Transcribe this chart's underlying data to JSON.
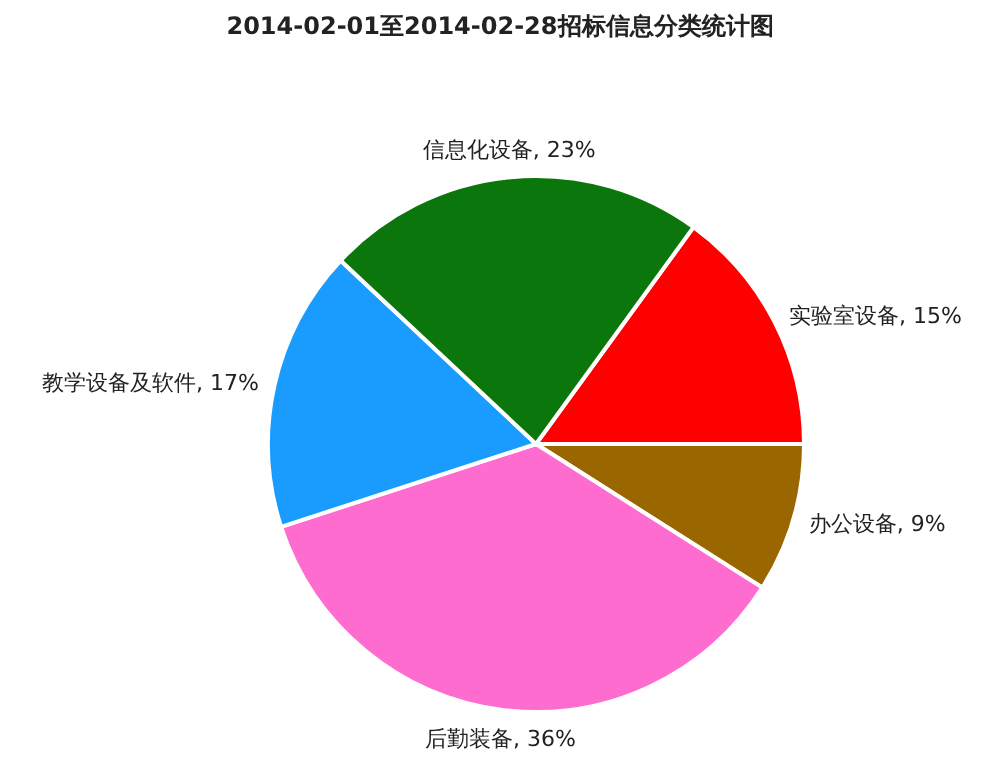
{
  "chart_data": {
    "type": "pie",
    "title": "2014-02-01至2014-02-28招标信息分类统计图",
    "categories": [
      "实验室设备",
      "办公设备",
      "后勤装备",
      "教学设备及软件",
      "信息化设备"
    ],
    "values": [
      15,
      9,
      36,
      17,
      23
    ],
    "value_labels": [
      "15%",
      "9%",
      "36%",
      "17%",
      "23%"
    ],
    "colors": [
      "#ff0000",
      "#996600",
      "#ff6ccf",
      "#1a9cff",
      "#0b760b"
    ]
  }
}
